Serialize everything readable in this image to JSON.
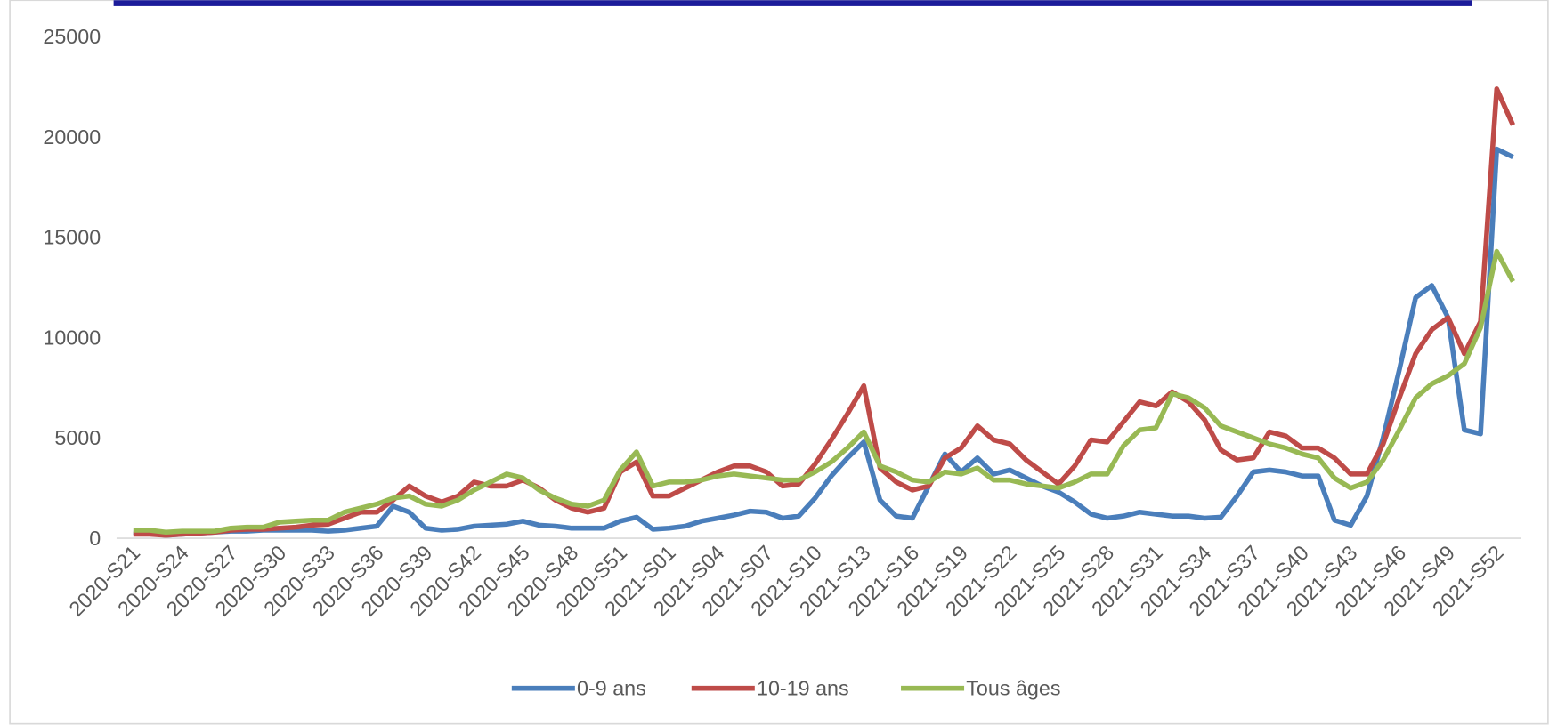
{
  "chart_data": {
    "type": "line",
    "categories": [
      "2020-S21",
      null,
      null,
      "2020-S24",
      null,
      null,
      "2020-S27",
      null,
      null,
      "2020-S30",
      null,
      null,
      "2020-S33",
      null,
      null,
      "2020-S36",
      null,
      null,
      "2020-S39",
      null,
      null,
      "2020-S42",
      null,
      null,
      "2020-S45",
      null,
      null,
      "2020-S48",
      null,
      null,
      "2020-S51",
      null,
      null,
      "2021-S01",
      null,
      null,
      "2021-S04",
      null,
      null,
      "2021-S07",
      null,
      null,
      "2021-S10",
      null,
      null,
      "2021-S13",
      null,
      null,
      "2021-S16",
      null,
      null,
      "2021-S19",
      null,
      null,
      "2021-S22",
      null,
      null,
      "2021-S25",
      null,
      null,
      "2021-S28",
      null,
      null,
      "2021-S31",
      null,
      null,
      "2021-S34",
      null,
      null,
      "2021-S37",
      null,
      null,
      "2021-S40",
      null,
      null,
      "2021-S43",
      null,
      null,
      "2021-S46",
      null,
      null,
      "2021-S49",
      null,
      null,
      "2021-S52",
      null
    ],
    "series": [
      {
        "name": "0-9 ans",
        "color": "#4a7ebb",
        "values": [
          300,
          250,
          150,
          200,
          250,
          300,
          350,
          350,
          400,
          400,
          400,
          400,
          350,
          400,
          500,
          600,
          1600,
          1300,
          500,
          400,
          450,
          600,
          650,
          700,
          850,
          650,
          600,
          500,
          500,
          500,
          850,
          1050,
          450,
          500,
          600,
          850,
          1000,
          1150,
          1350,
          1300,
          1000,
          1100,
          2000,
          3100,
          4000,
          4800,
          1900,
          1100,
          1000,
          2600,
          4200,
          3300,
          4000,
          3200,
          3400,
          3000,
          2600,
          2300,
          1800,
          1200,
          1000,
          1100,
          1300,
          1200,
          1100,
          1100,
          1000,
          1050,
          2100,
          3300,
          3400,
          3300,
          3100,
          3100,
          900,
          650,
          2100,
          5000,
          8400,
          12000,
          12600,
          11000,
          5400,
          5200,
          19400,
          19000
        ]
      },
      {
        "name": "10-19 ans",
        "color": "#be4b48",
        "values": [
          200,
          200,
          150,
          200,
          250,
          300,
          400,
          450,
          450,
          500,
          550,
          650,
          700,
          1000,
          1300,
          1300,
          1900,
          2600,
          2100,
          1800,
          2100,
          2800,
          2600,
          2600,
          2900,
          2500,
          1900,
          1500,
          1300,
          1500,
          3300,
          3800,
          2100,
          2100,
          2500,
          2900,
          3300,
          3600,
          3600,
          3300,
          2600,
          2700,
          3700,
          4900,
          6200,
          7600,
          3500,
          2800,
          2400,
          2600,
          4000,
          4500,
          5600,
          4900,
          4700,
          3900,
          3300,
          2700,
          3600,
          4900,
          4800,
          5800,
          6800,
          6600,
          7300,
          6800,
          5900,
          4400,
          3900,
          4000,
          5300,
          5100,
          4500,
          4500,
          4000,
          3200,
          3200,
          4700,
          7000,
          9200,
          10400,
          11000,
          9200,
          10800,
          22400,
          20600
        ]
      },
      {
        "name": "Tous âges",
        "color": "#98b954",
        "values": [
          400,
          400,
          300,
          350,
          350,
          350,
          500,
          550,
          550,
          800,
          850,
          900,
          900,
          1300,
          1500,
          1700,
          2000,
          2100,
          1700,
          1600,
          1900,
          2400,
          2800,
          3200,
          3000,
          2400,
          2000,
          1700,
          1600,
          1900,
          3400,
          4300,
          2600,
          2800,
          2800,
          2900,
          3100,
          3200,
          3100,
          3000,
          2900,
          2900,
          3300,
          3800,
          4500,
          5300,
          3600,
          3300,
          2900,
          2800,
          3300,
          3200,
          3500,
          2900,
          2900,
          2700,
          2600,
          2500,
          2800,
          3200,
          3200,
          4600,
          5400,
          5500,
          7200,
          7000,
          6500,
          5600,
          5300,
          5000,
          4700,
          4500,
          4200,
          4000,
          3000,
          2500,
          2800,
          3900,
          5400,
          7000,
          7700,
          8100,
          8700,
          10500,
          14300,
          12800
        ]
      }
    ],
    "ylim": [
      0,
      25000
    ],
    "yticks": [
      0,
      5000,
      10000,
      15000,
      20000,
      25000
    ],
    "grid": false,
    "legend": "bottom"
  }
}
